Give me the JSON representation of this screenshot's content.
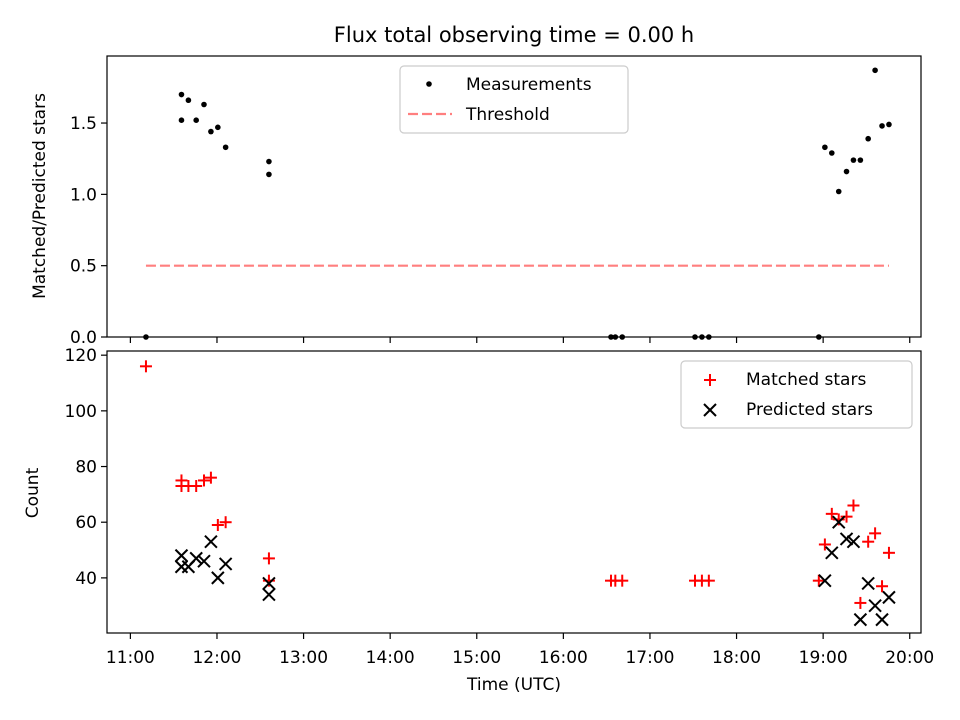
{
  "chart_data": [
    {
      "type": "scatter",
      "title": "Flux total observing time = 0.00 h",
      "xlabel": "",
      "ylabel": "Matched/Predicted stars",
      "xlim": [
        10.73,
        20.13
      ],
      "ylim": [
        0,
        1.97
      ],
      "yticks": [
        0.0,
        0.5,
        1.0,
        1.5
      ],
      "ytick_labels": [
        "0.0",
        "0.5",
        "1.0",
        "1.5"
      ],
      "xticks": [
        11,
        12,
        13,
        14,
        15,
        16,
        17,
        18,
        19,
        20
      ],
      "grid": false,
      "legend_position": "top-center",
      "series": [
        {
          "name": "Measurements",
          "kind": "points",
          "color": "#000000",
          "points": [
            [
              11.18,
              0.0
            ],
            [
              11.59,
              1.7
            ],
            [
              11.59,
              1.52
            ],
            [
              11.67,
              1.66
            ],
            [
              11.76,
              1.52
            ],
            [
              11.85,
              1.63
            ],
            [
              11.93,
              1.44
            ],
            [
              12.01,
              1.47
            ],
            [
              12.1,
              1.33
            ],
            [
              12.6,
              1.23
            ],
            [
              12.6,
              1.14
            ],
            [
              16.55,
              0.0
            ],
            [
              16.6,
              0.0
            ],
            [
              16.68,
              0.0
            ],
            [
              17.52,
              0.0
            ],
            [
              17.6,
              0.0
            ],
            [
              17.68,
              0.0
            ],
            [
              18.95,
              0.0
            ],
            [
              19.02,
              1.33
            ],
            [
              19.1,
              1.29
            ],
            [
              19.18,
              1.02
            ],
            [
              19.27,
              1.16
            ],
            [
              19.35,
              1.24
            ],
            [
              19.43,
              1.24
            ],
            [
              19.52,
              1.39
            ],
            [
              19.6,
              1.87
            ],
            [
              19.68,
              1.48
            ],
            [
              19.76,
              1.49
            ]
          ]
        },
        {
          "name": "Threshold",
          "kind": "dashed-line",
          "color": "#ff7f7f",
          "points": [
            [
              11.18,
              0.5
            ],
            [
              19.76,
              0.5
            ]
          ]
        }
      ]
    },
    {
      "type": "scatter",
      "title": "",
      "xlabel": "Time (UTC)",
      "ylabel": "Count",
      "xlim": [
        10.73,
        20.13
      ],
      "ylim": [
        20.2,
        121.5
      ],
      "yticks": [
        40,
        60,
        80,
        100,
        120
      ],
      "xticks": [
        11,
        12,
        13,
        14,
        15,
        16,
        17,
        18,
        19,
        20
      ],
      "xtick_labels": [
        "11:00",
        "12:00",
        "13:00",
        "14:00",
        "15:00",
        "16:00",
        "17:00",
        "18:00",
        "19:00",
        "20:00"
      ],
      "grid": false,
      "legend_position": "top-right",
      "series": [
        {
          "name": "Matched stars",
          "marker": "plus",
          "color": "#ff0000",
          "points": [
            [
              11.18,
              116
            ],
            [
              11.59,
              75
            ],
            [
              11.59,
              73
            ],
            [
              11.67,
              73
            ],
            [
              11.76,
              73
            ],
            [
              11.85,
              75
            ],
            [
              11.93,
              76
            ],
            [
              12.01,
              59
            ],
            [
              12.1,
              60
            ],
            [
              12.6,
              47
            ],
            [
              12.6,
              39
            ],
            [
              16.55,
              39
            ],
            [
              16.6,
              39
            ],
            [
              16.68,
              39
            ],
            [
              17.52,
              39
            ],
            [
              17.6,
              39
            ],
            [
              17.68,
              39
            ],
            [
              18.95,
              39
            ],
            [
              19.02,
              52
            ],
            [
              19.1,
              63
            ],
            [
              19.18,
              61
            ],
            [
              19.27,
              62
            ],
            [
              19.35,
              66
            ],
            [
              19.43,
              31
            ],
            [
              19.52,
              53
            ],
            [
              19.6,
              56
            ],
            [
              19.68,
              37
            ],
            [
              19.76,
              49
            ]
          ]
        },
        {
          "name": "Predicted stars",
          "marker": "x",
          "color": "#000000",
          "points": [
            [
              11.59,
              48
            ],
            [
              11.59,
              44
            ],
            [
              11.67,
              44
            ],
            [
              11.76,
              47
            ],
            [
              11.85,
              46
            ],
            [
              11.93,
              53
            ],
            [
              12.01,
              40
            ],
            [
              12.1,
              45
            ],
            [
              12.6,
              38
            ],
            [
              12.6,
              34
            ],
            [
              19.02,
              39
            ],
            [
              19.1,
              49
            ],
            [
              19.18,
              60
            ],
            [
              19.27,
              54
            ],
            [
              19.35,
              53
            ],
            [
              19.43,
              25
            ],
            [
              19.52,
              38
            ],
            [
              19.6,
              30
            ],
            [
              19.68,
              25
            ],
            [
              19.76,
              33
            ]
          ]
        }
      ]
    }
  ]
}
